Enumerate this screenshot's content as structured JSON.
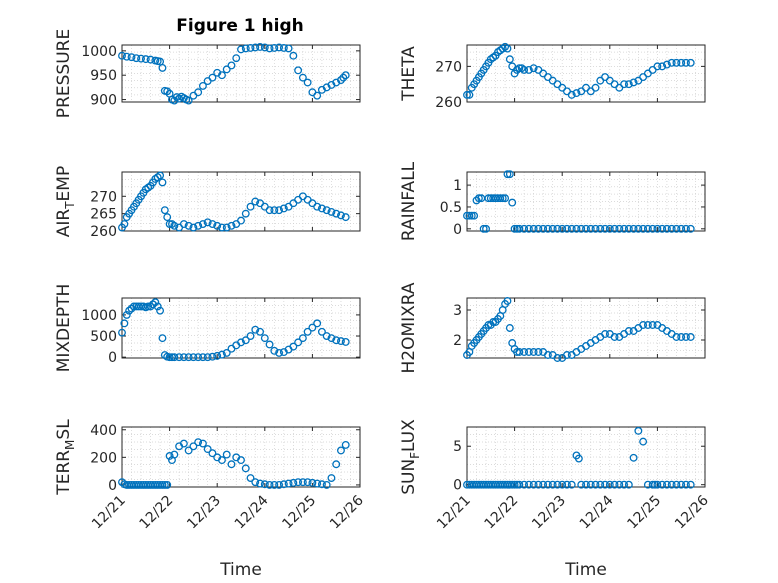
{
  "figure": {
    "title": "Figure 1 high",
    "marker_color": "#0072BD",
    "grid_color": "#d0d0d0",
    "axis_color": "#262626"
  },
  "chart_data": [
    {
      "type": "scatter",
      "id": "pressure",
      "ylabel": {
        "main": "PRESSURE"
      },
      "xlabel": "",
      "ylim": [
        895,
        1012
      ],
      "yticks": [
        900,
        950,
        1000
      ],
      "xlim": [
        0,
        5
      ],
      "xticks": [
        0,
        1,
        2,
        3,
        4,
        5
      ],
      "xticklabels": [],
      "grid": "minor-dotted",
      "x": [
        0.0,
        0.1,
        0.2,
        0.3,
        0.4,
        0.5,
        0.6,
        0.7,
        0.75,
        0.8,
        0.85,
        0.9,
        0.95,
        1.0,
        1.05,
        1.1,
        1.15,
        1.2,
        1.25,
        1.3,
        1.35,
        1.4,
        1.5,
        1.6,
        1.7,
        1.8,
        1.9,
        2.0,
        2.1,
        2.2,
        2.3,
        2.4,
        2.5,
        2.6,
        2.7,
        2.8,
        2.9,
        3.0,
        3.1,
        3.2,
        3.3,
        3.4,
        3.5,
        3.6,
        3.7,
        3.8,
        3.9,
        4.0,
        4.1,
        4.2,
        4.3,
        4.4,
        4.5,
        4.6,
        4.65,
        4.7
      ],
      "y": [
        990,
        988,
        987,
        985,
        984,
        983,
        982,
        980,
        979,
        978,
        965,
        918,
        917,
        912,
        900,
        898,
        905,
        902,
        906,
        903,
        900,
        898,
        908,
        915,
        928,
        938,
        945,
        955,
        950,
        962,
        970,
        985,
        1003,
        1005,
        1006,
        1007,
        1008,
        1007,
        1005,
        1006,
        1007,
        1006,
        1005,
        990,
        960,
        945,
        935,
        915,
        908,
        920,
        925,
        930,
        935,
        940,
        945,
        950
      ]
    },
    {
      "type": "scatter",
      "id": "theta",
      "ylabel": {
        "main": "THETA"
      },
      "xlabel": "",
      "ylim": [
        260,
        276
      ],
      "yticks": [
        260,
        270
      ],
      "xlim": [
        0,
        5
      ],
      "xticks": [
        0,
        1,
        2,
        3,
        4,
        5
      ],
      "xticklabels": [],
      "grid": "minor-dotted",
      "x": [
        0.0,
        0.05,
        0.1,
        0.15,
        0.2,
        0.25,
        0.3,
        0.35,
        0.4,
        0.45,
        0.5,
        0.55,
        0.6,
        0.65,
        0.7,
        0.75,
        0.8,
        0.85,
        0.9,
        0.95,
        1.0,
        1.05,
        1.1,
        1.15,
        1.2,
        1.3,
        1.4,
        1.5,
        1.6,
        1.7,
        1.8,
        1.9,
        2.0,
        2.1,
        2.2,
        2.3,
        2.4,
        2.5,
        2.6,
        2.7,
        2.8,
        2.9,
        3.0,
        3.1,
        3.2,
        3.3,
        3.4,
        3.5,
        3.6,
        3.7,
        3.8,
        3.9,
        4.0,
        4.1,
        4.2,
        4.3,
        4.4,
        4.5,
        4.6,
        4.7
      ],
      "y": [
        262,
        262,
        264,
        265,
        266,
        267,
        268,
        269,
        270,
        271,
        272,
        272.5,
        273,
        274,
        274.5,
        275,
        275.5,
        275,
        272,
        270,
        268,
        269,
        269.5,
        269.5,
        269,
        269,
        269.5,
        269,
        268,
        267,
        266,
        265,
        264,
        263,
        262,
        262.5,
        263,
        264,
        263,
        264,
        266,
        267,
        266,
        265,
        264,
        265,
        265,
        265.5,
        266,
        267,
        268,
        269,
        270,
        270,
        270.5,
        271,
        271,
        271,
        271,
        271
      ]
    },
    {
      "type": "scatter",
      "id": "air_temp",
      "ylabel": {
        "main": "AIR",
        "sub": "T",
        "tail": "EMP"
      },
      "xlabel": "",
      "ylim": [
        260,
        277
      ],
      "yticks": [
        260,
        265,
        270
      ],
      "xlim": [
        0,
        5
      ],
      "xticks": [
        0,
        1,
        2,
        3,
        4,
        5
      ],
      "xticklabels": [],
      "grid": "minor-dotted",
      "x": [
        0.0,
        0.05,
        0.1,
        0.15,
        0.2,
        0.25,
        0.3,
        0.35,
        0.4,
        0.45,
        0.5,
        0.55,
        0.6,
        0.65,
        0.7,
        0.75,
        0.8,
        0.85,
        0.9,
        0.95,
        1.0,
        1.05,
        1.1,
        1.2,
        1.3,
        1.4,
        1.5,
        1.6,
        1.7,
        1.8,
        1.9,
        2.0,
        2.1,
        2.2,
        2.3,
        2.4,
        2.5,
        2.6,
        2.7,
        2.8,
        2.9,
        3.0,
        3.1,
        3.2,
        3.3,
        3.4,
        3.5,
        3.6,
        3.7,
        3.8,
        3.9,
        4.0,
        4.1,
        4.2,
        4.3,
        4.4,
        4.5,
        4.6,
        4.7
      ],
      "y": [
        261,
        262,
        264,
        265,
        266,
        267,
        268,
        269,
        270,
        271,
        272,
        272.5,
        273,
        274,
        275,
        275.5,
        276,
        274,
        266,
        264,
        262,
        262,
        261.5,
        261,
        262,
        261.5,
        261,
        261.5,
        262,
        262.5,
        262,
        261.5,
        261,
        261,
        261.5,
        262,
        263,
        265,
        267,
        268.5,
        268,
        267,
        266,
        266,
        266,
        266.5,
        267,
        268,
        269,
        270,
        269,
        268,
        267,
        266.5,
        266,
        265.5,
        265,
        264.5,
        264
      ]
    },
    {
      "type": "scatter",
      "id": "rainfall",
      "ylabel": {
        "main": "RAINFALL"
      },
      "xlabel": "",
      "ylim": [
        -0.05,
        1.3
      ],
      "yticks": [
        0,
        0.5,
        1
      ],
      "yticklabels": [
        "0",
        "0.5",
        "1"
      ],
      "xlim": [
        0,
        5
      ],
      "xticks": [
        0,
        1,
        2,
        3,
        4,
        5
      ],
      "xticklabels": [],
      "grid": "minor-dotted",
      "x": [
        0.0,
        0.05,
        0.1,
        0.15,
        0.2,
        0.25,
        0.3,
        0.35,
        0.4,
        0.45,
        0.5,
        0.55,
        0.6,
        0.65,
        0.7,
        0.75,
        0.8,
        0.85,
        0.9,
        0.95,
        1.0,
        1.05,
        1.1,
        1.2,
        1.3,
        1.4,
        1.5,
        1.6,
        1.7,
        1.8,
        1.9,
        2.0,
        2.1,
        2.2,
        2.3,
        2.4,
        2.5,
        2.6,
        2.7,
        2.8,
        2.9,
        3.0,
        3.1,
        3.2,
        3.3,
        3.4,
        3.5,
        3.6,
        3.7,
        3.8,
        3.9,
        4.0,
        4.1,
        4.2,
        4.3,
        4.4,
        4.5,
        4.6,
        4.7
      ],
      "y": [
        0.3,
        0.3,
        0.3,
        0.3,
        0.65,
        0.7,
        0.7,
        0.0,
        0.0,
        0.7,
        0.7,
        0.7,
        0.7,
        0.7,
        0.7,
        0.7,
        0.7,
        1.25,
        1.25,
        0.6,
        0.0,
        0.0,
        0.0,
        0.0,
        0.0,
        0.0,
        0.0,
        0.0,
        0.0,
        0.0,
        0.0,
        0.0,
        0.0,
        0.0,
        0.0,
        0.0,
        0.0,
        0.0,
        0.0,
        0.0,
        0.0,
        0.0,
        0.0,
        0.0,
        0.0,
        0.0,
        0.0,
        0.0,
        0.0,
        0.0,
        0.0,
        0.0,
        0.0,
        0.0,
        0.0,
        0.0,
        0.0,
        0.0,
        0.0
      ]
    },
    {
      "type": "scatter",
      "id": "mixdepth",
      "ylabel": {
        "main": "MIXDEPTH"
      },
      "xlabel": "",
      "ylim": [
        -20,
        1400
      ],
      "yticks": [
        0,
        500,
        1000
      ],
      "xlim": [
        0,
        5
      ],
      "xticks": [
        0,
        1,
        2,
        3,
        4,
        5
      ],
      "xticklabels": [],
      "grid": "minor-dotted",
      "x": [
        0.0,
        0.05,
        0.1,
        0.15,
        0.2,
        0.25,
        0.3,
        0.35,
        0.4,
        0.45,
        0.5,
        0.55,
        0.6,
        0.65,
        0.7,
        0.75,
        0.8,
        0.85,
        0.9,
        0.95,
        1.0,
        1.05,
        1.1,
        1.2,
        1.3,
        1.4,
        1.5,
        1.6,
        1.7,
        1.8,
        1.9,
        2.0,
        2.1,
        2.2,
        2.3,
        2.4,
        2.5,
        2.6,
        2.7,
        2.8,
        2.9,
        3.0,
        3.1,
        3.2,
        3.3,
        3.4,
        3.5,
        3.6,
        3.7,
        3.8,
        3.9,
        4.0,
        4.1,
        4.2,
        4.3,
        4.4,
        4.5,
        4.6,
        4.7
      ],
      "y": [
        580,
        800,
        1000,
        1100,
        1150,
        1200,
        1200,
        1200,
        1200,
        1200,
        1180,
        1200,
        1200,
        1250,
        1300,
        1200,
        1100,
        450,
        50,
        10,
        0,
        0,
        0,
        0,
        0,
        0,
        0,
        0,
        0,
        0,
        10,
        30,
        60,
        100,
        200,
        280,
        350,
        400,
        500,
        650,
        600,
        450,
        300,
        150,
        100,
        120,
        180,
        250,
        350,
        450,
        600,
        700,
        800,
        600,
        500,
        450,
        400,
        380,
        360
      ]
    },
    {
      "type": "scatter",
      "id": "h2omixra",
      "ylabel": {
        "main": "H2OMIXRA"
      },
      "xlabel": "",
      "ylim": [
        1.4,
        3.4
      ],
      "yticks": [
        2,
        3
      ],
      "xlim": [
        0,
        5
      ],
      "xticks": [
        0,
        1,
        2,
        3,
        4,
        5
      ],
      "xticklabels": [],
      "grid": "minor-dotted",
      "x": [
        0.0,
        0.05,
        0.1,
        0.15,
        0.2,
        0.25,
        0.3,
        0.35,
        0.4,
        0.45,
        0.5,
        0.55,
        0.6,
        0.65,
        0.7,
        0.75,
        0.8,
        0.85,
        0.9,
        0.95,
        1.0,
        1.05,
        1.1,
        1.2,
        1.3,
        1.4,
        1.5,
        1.6,
        1.7,
        1.8,
        1.9,
        2.0,
        2.1,
        2.2,
        2.3,
        2.4,
        2.5,
        2.6,
        2.7,
        2.8,
        2.9,
        3.0,
        3.1,
        3.2,
        3.3,
        3.4,
        3.5,
        3.6,
        3.7,
        3.8,
        3.9,
        4.0,
        4.1,
        4.2,
        4.3,
        4.4,
        4.5,
        4.6,
        4.7
      ],
      "y": [
        1.5,
        1.6,
        1.8,
        1.9,
        2.0,
        2.1,
        2.2,
        2.3,
        2.4,
        2.5,
        2.5,
        2.6,
        2.6,
        2.7,
        2.8,
        3.0,
        3.2,
        3.3,
        2.4,
        1.9,
        1.7,
        1.6,
        1.6,
        1.6,
        1.6,
        1.6,
        1.6,
        1.6,
        1.5,
        1.5,
        1.4,
        1.4,
        1.5,
        1.5,
        1.6,
        1.7,
        1.8,
        1.9,
        2.0,
        2.1,
        2.2,
        2.2,
        2.1,
        2.1,
        2.2,
        2.3,
        2.3,
        2.4,
        2.5,
        2.5,
        2.5,
        2.5,
        2.4,
        2.3,
        2.2,
        2.1,
        2.1,
        2.1,
        2.1
      ]
    },
    {
      "type": "scatter",
      "id": "terr_msl",
      "ylabel": {
        "main": "TERR",
        "sub": "M",
        "tail": "SL"
      },
      "xlabel": "Time",
      "ylim": [
        -15,
        420
      ],
      "yticks": [
        0,
        200,
        400
      ],
      "xlim": [
        0,
        5
      ],
      "xticks": [
        0,
        1,
        2,
        3,
        4,
        5
      ],
      "xticklabels": [
        "12/21",
        "12/22",
        "12/23",
        "12/24",
        "12/25",
        "12/26"
      ],
      "grid": "minor-dotted",
      "x": [
        0.0,
        0.05,
        0.1,
        0.15,
        0.2,
        0.25,
        0.3,
        0.35,
        0.4,
        0.45,
        0.5,
        0.55,
        0.6,
        0.65,
        0.7,
        0.75,
        0.8,
        0.85,
        0.9,
        0.95,
        1.0,
        1.05,
        1.1,
        1.2,
        1.3,
        1.4,
        1.5,
        1.6,
        1.7,
        1.8,
        1.9,
        2.0,
        2.1,
        2.2,
        2.3,
        2.4,
        2.5,
        2.6,
        2.7,
        2.8,
        2.9,
        3.0,
        3.1,
        3.2,
        3.3,
        3.4,
        3.5,
        3.6,
        3.7,
        3.8,
        3.9,
        4.0,
        4.1,
        4.2,
        4.3,
        4.4,
        4.5,
        4.6,
        4.7
      ],
      "y": [
        20,
        5,
        0,
        0,
        0,
        0,
        0,
        0,
        0,
        0,
        0,
        0,
        0,
        0,
        0,
        0,
        0,
        0,
        0,
        0,
        210,
        180,
        220,
        280,
        300,
        250,
        280,
        310,
        300,
        260,
        230,
        200,
        180,
        220,
        150,
        200,
        180,
        120,
        50,
        20,
        10,
        5,
        0,
        0,
        0,
        5,
        10,
        15,
        20,
        20,
        20,
        15,
        10,
        5,
        0,
        50,
        150,
        250,
        290
      ]
    },
    {
      "type": "scatter",
      "id": "sun_flux",
      "ylabel": {
        "main": "SUN",
        "sub": "F",
        "tail": "LUX"
      },
      "xlabel": "Time",
      "ylim": [
        -0.3,
        7.5
      ],
      "yticks": [
        0,
        5
      ],
      "xlim": [
        0,
        5
      ],
      "xticks": [
        0,
        1,
        2,
        3,
        4,
        5
      ],
      "xticklabels": [
        "12/21",
        "12/22",
        "12/23",
        "12/24",
        "12/25",
        "12/26"
      ],
      "grid": "minor-dotted",
      "x": [
        0.0,
        0.05,
        0.1,
        0.15,
        0.2,
        0.25,
        0.3,
        0.35,
        0.4,
        0.45,
        0.5,
        0.55,
        0.6,
        0.65,
        0.7,
        0.75,
        0.8,
        0.85,
        0.9,
        0.95,
        1.0,
        1.05,
        1.1,
        1.2,
        1.3,
        1.4,
        1.5,
        1.6,
        1.7,
        1.8,
        1.9,
        2.0,
        2.1,
        2.2,
        2.3,
        2.35,
        2.4,
        2.5,
        2.6,
        2.7,
        2.8,
        2.9,
        3.0,
        3.1,
        3.2,
        3.3,
        3.4,
        3.5,
        3.6,
        3.7,
        3.8,
        3.9,
        3.95,
        4.0,
        4.1,
        4.2,
        4.3,
        4.4,
        4.5,
        4.6,
        4.7
      ],
      "y": [
        0,
        0,
        0,
        0,
        0,
        0,
        0,
        0,
        0,
        0,
        0,
        0,
        0,
        0,
        0,
        0,
        0,
        0,
        0,
        0,
        0,
        0,
        0,
        0,
        0,
        0,
        0,
        0,
        0,
        0,
        0,
        0,
        0,
        0,
        3.8,
        3.4,
        0,
        0,
        0,
        0,
        0,
        0,
        0,
        0,
        0,
        0,
        0,
        3.5,
        7.0,
        5.6,
        0,
        0,
        0,
        0,
        0,
        0,
        0,
        0,
        0,
        0,
        0
      ]
    }
  ]
}
